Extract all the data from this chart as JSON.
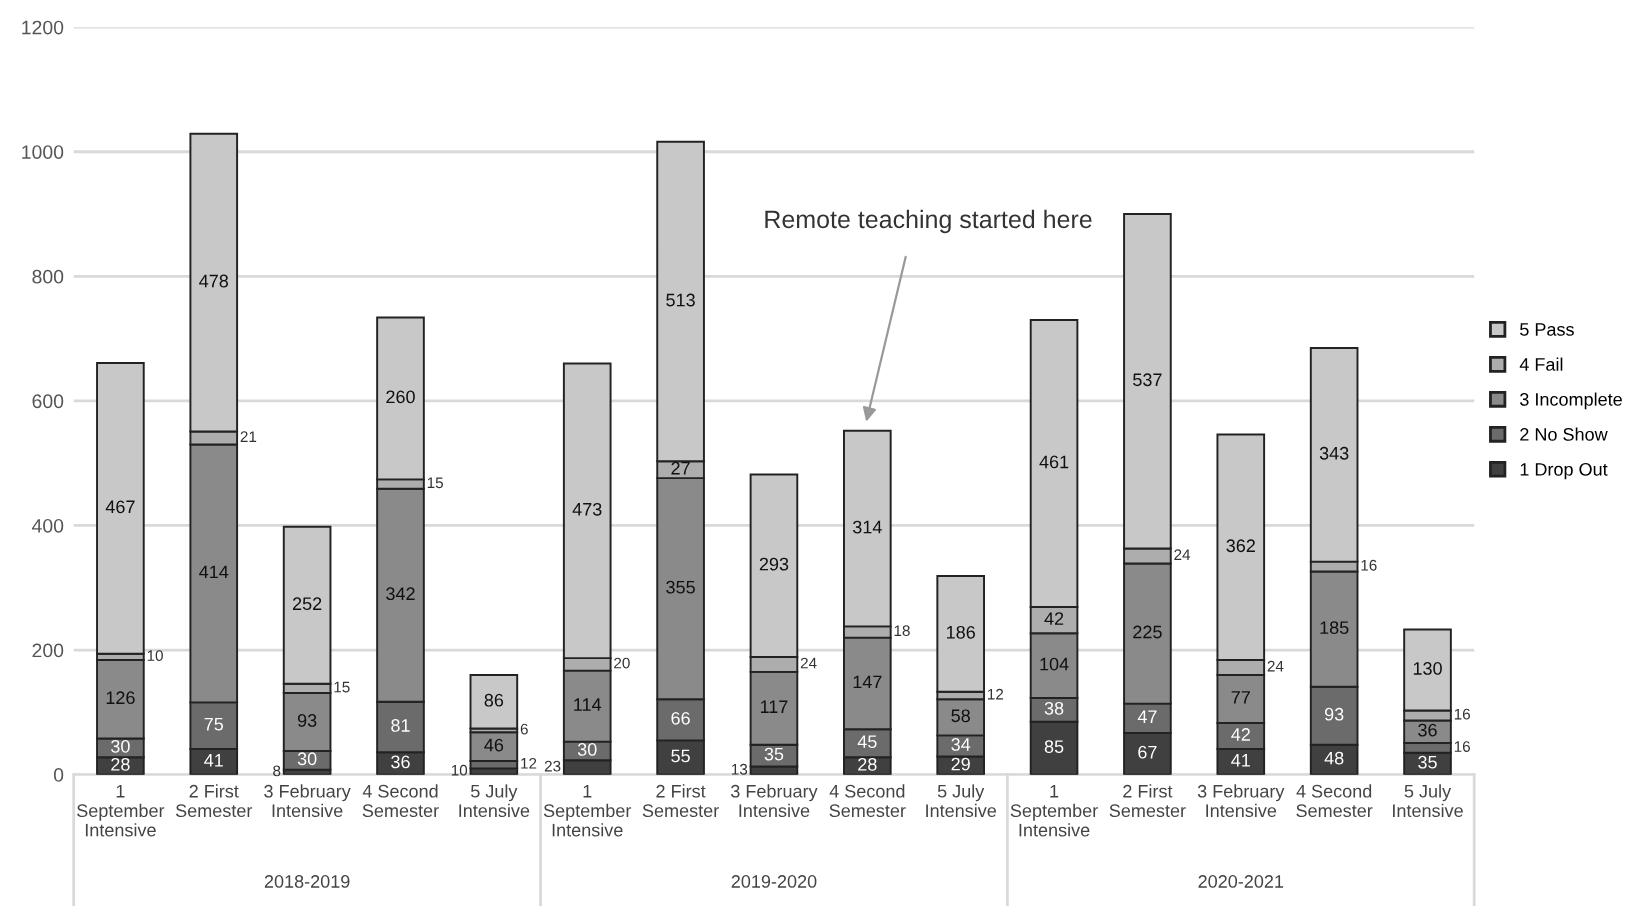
{
  "chart_data": {
    "type": "bar",
    "stacked": true,
    "categories": [
      "1\nSeptember\nIntensive",
      "2 First\nSemester",
      "3 February\nIntensive",
      "4 Second\nSemester",
      "5 July\nIntensive",
      "1\nSeptember\nIntensive",
      "2 First\nSemester",
      "3 February\nIntensive",
      "4 Second\nSemester",
      "5 July\nIntensive",
      "1\nSeptember\nIntensive",
      "2 First\nSemester",
      "3 February\nIntensive",
      "4 Second\nSemester",
      "5 July\nIntensive"
    ],
    "series": [
      {
        "name": "1 Drop Out",
        "color": "#404040",
        "values": [
          28,
          41,
          8,
          36,
          10,
          23,
          55,
          13,
          28,
          29,
          85,
          67,
          41,
          48,
          35
        ]
      },
      {
        "name": "2 No Show",
        "color": "#6b6b6b",
        "values": [
          30,
          75,
          30,
          81,
          12,
          30,
          66,
          35,
          45,
          34,
          38,
          47,
          42,
          93,
          16
        ]
      },
      {
        "name": "3 Incomplete",
        "color": "#8a8a8a",
        "values": [
          126,
          414,
          93,
          342,
          46,
          114,
          355,
          117,
          147,
          58,
          104,
          225,
          77,
          185,
          36
        ]
      },
      {
        "name": "4 Fail",
        "color": "#adadad",
        "values": [
          10,
          21,
          15,
          15,
          6,
          20,
          27,
          24,
          18,
          12,
          42,
          24,
          24,
          16,
          16
        ]
      },
      {
        "name": "5 Pass",
        "color": "#c8c8c8",
        "values": [
          467,
          478,
          252,
          260,
          86,
          473,
          513,
          293,
          314,
          186,
          461,
          537,
          362,
          343,
          130
        ]
      }
    ],
    "ylim": [
      0,
      1200
    ],
    "yticks": [
      0,
      200,
      400,
      600,
      800,
      1000,
      1200
    ],
    "grid": "y",
    "legend": "right",
    "data_labels": true,
    "annotations": [
      "Remote teaching started here",
      "2018-2019",
      "2019-2020",
      "2020-2021"
    ]
  }
}
